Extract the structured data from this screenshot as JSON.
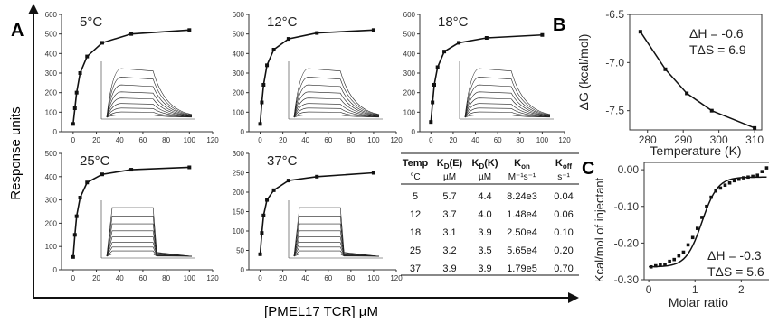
{
  "panel_labels": {
    "A": "A",
    "B": "B",
    "C": "C"
  },
  "panel_a": {
    "ylabel": "Response units",
    "xlabel": "[PMEL17 TCR] µM",
    "table": {
      "headers": [
        {
          "main": "Temp",
          "sub": "",
          "unit": "°C"
        },
        {
          "main": "K",
          "sub": "D",
          "post": "(E)",
          "unit": "µM"
        },
        {
          "main": "K",
          "sub": "D",
          "post": "(K)",
          "unit": "µM"
        },
        {
          "main": "K",
          "sub": "on",
          "post": "",
          "unit": "M⁻¹s⁻¹"
        },
        {
          "main": "K",
          "sub": "off",
          "post": "",
          "unit": "s⁻¹"
        }
      ],
      "rows": [
        [
          "5",
          "5.7",
          "4.4",
          "8.24e3",
          "0.04"
        ],
        [
          "12",
          "3.7",
          "4.0",
          "1.48e4",
          "0.06"
        ],
        [
          "18",
          "3.1",
          "3.9",
          "2.50e4",
          "0.10"
        ],
        [
          "25",
          "3.2",
          "3.5",
          "5.65e4",
          "0.20"
        ],
        [
          "37",
          "3.9",
          "3.9",
          "1.79e5",
          "0.70"
        ]
      ]
    }
  },
  "chart_data": [
    {
      "type": "line",
      "title": "5°C",
      "xlim": [
        -10,
        120
      ],
      "ylim": [
        0,
        600
      ],
      "xticks": [
        "0",
        "20",
        "40",
        "60",
        "80",
        "100",
        "120"
      ],
      "yticks": [
        "0",
        "100",
        "200",
        "300",
        "400",
        "500",
        "600"
      ],
      "series": [
        {
          "x": [
            0,
            1.5,
            3,
            6,
            12,
            25,
            50,
            100
          ],
          "y": [
            40,
            120,
            200,
            300,
            385,
            455,
            500,
            520
          ]
        }
      ],
      "inset": "sensorgram"
    },
    {
      "type": "line",
      "title": "12°C",
      "xlim": [
        -10,
        120
      ],
      "ylim": [
        0,
        600
      ],
      "xticks": [
        "0",
        "20",
        "40",
        "60",
        "80",
        "100",
        "120"
      ],
      "yticks": [
        "0",
        "100",
        "200",
        "300",
        "400",
        "500",
        "600"
      ],
      "series": [
        {
          "x": [
            0,
            1.5,
            3,
            6,
            12,
            25,
            50,
            100
          ],
          "y": [
            40,
            150,
            240,
            340,
            420,
            475,
            505,
            520
          ]
        }
      ],
      "inset": "sensorgram"
    },
    {
      "type": "line",
      "title": "18°C",
      "xlim": [
        -10,
        120
      ],
      "ylim": [
        0,
        600
      ],
      "xticks": [
        "0",
        "20",
        "40",
        "60",
        "80",
        "100",
        "120"
      ],
      "yticks": [
        "0",
        "100",
        "200",
        "300",
        "400",
        "500",
        "600"
      ],
      "series": [
        {
          "x": [
            0,
            1.5,
            3,
            6,
            12,
            25,
            50,
            100
          ],
          "y": [
            50,
            150,
            240,
            330,
            410,
            455,
            480,
            495
          ]
        }
      ],
      "inset": "sensorgram"
    },
    {
      "type": "line",
      "title": "25°C",
      "xlim": [
        -10,
        120
      ],
      "ylim": [
        0,
        500
      ],
      "xticks": [
        "0",
        "20",
        "40",
        "60",
        "80",
        "100",
        "120"
      ],
      "yticks": [
        "0",
        "100",
        "200",
        "300",
        "400",
        "500"
      ],
      "series": [
        {
          "x": [
            0,
            1.5,
            3,
            6,
            12,
            25,
            50,
            100
          ],
          "y": [
            55,
            150,
            230,
            310,
            375,
            410,
            430,
            440
          ]
        }
      ],
      "inset": "sensorgram"
    },
    {
      "type": "line",
      "title": "37°C",
      "xlim": [
        -10,
        120
      ],
      "ylim": [
        0,
        300
      ],
      "xticks": [
        "0",
        "20",
        "40",
        "60",
        "80",
        "100",
        "120"
      ],
      "yticks": [
        "0",
        "50",
        "100",
        "150",
        "200",
        "250",
        "300"
      ],
      "series": [
        {
          "x": [
            0,
            1.5,
            3,
            6,
            12,
            25,
            50,
            100
          ],
          "y": [
            40,
            95,
            140,
            180,
            205,
            230,
            240,
            250
          ]
        }
      ],
      "inset": "sensorgram"
    },
    {
      "type": "line",
      "title": "",
      "xlabel": "Temperature (K)",
      "ylabel": "ΔG (kcal/mol)",
      "xlim": [
        275,
        312
      ],
      "ylim": [
        -7.7,
        -6.5
      ],
      "xticks": [
        "280",
        "290",
        "300",
        "310"
      ],
      "yticks": [
        "-6.5",
        "-7.0",
        "-7.5"
      ],
      "series": [
        {
          "x": [
            278,
            285,
            291,
            298,
            310
          ],
          "y": [
            -6.68,
            -7.07,
            -7.32,
            -7.5,
            -7.68
          ]
        }
      ],
      "annotations": [
        "ΔH = -0.6",
        "TΔS = 6.9"
      ]
    },
    {
      "type": "scatter",
      "xlabel": "Molar ratio",
      "ylabel": "Kcal/mol of injectant",
      "xlim": [
        -0.1,
        2.6
      ],
      "ylim": [
        -0.3,
        0.02
      ],
      "xticks": [
        "0",
        "1",
        "2"
      ],
      "yticks": [
        "0.00",
        "-0.10",
        "-0.20",
        "-0.30"
      ],
      "series": [
        {
          "x": [
            0.05,
            0.15,
            0.25,
            0.35,
            0.45,
            0.55,
            0.65,
            0.75,
            0.85,
            0.95,
            1.05,
            1.15,
            1.25,
            1.35,
            1.45,
            1.55,
            1.65,
            1.75,
            1.85,
            1.95,
            2.05,
            2.15,
            2.25,
            2.35,
            2.45,
            2.55
          ],
          "y": [
            -0.265,
            -0.262,
            -0.26,
            -0.258,
            -0.25,
            -0.245,
            -0.235,
            -0.225,
            -0.205,
            -0.185,
            -0.16,
            -0.13,
            -0.1,
            -0.075,
            -0.058,
            -0.05,
            -0.042,
            -0.036,
            -0.03,
            -0.026,
            -0.022,
            -0.02,
            -0.018,
            -0.015,
            -0.005,
            0.005
          ]
        }
      ],
      "annotations": [
        "ΔH = -0.3",
        "TΔS = 5.6"
      ]
    }
  ]
}
